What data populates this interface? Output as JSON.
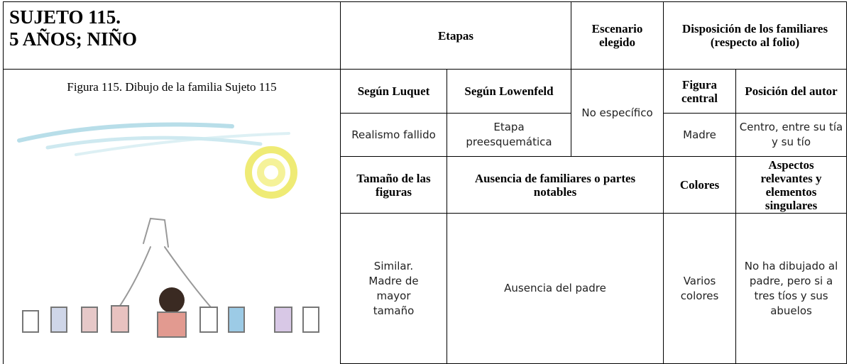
{
  "header": {
    "subject": "SUJETO 115.",
    "age": "5 AÑOS; NIÑO"
  },
  "figure": {
    "caption": "Figura 115. Dibujo de la familia Sujeto 115"
  },
  "table": {
    "etapas_header": "Etapas",
    "escenario_header": "Escenario elegido",
    "disposicion_header": "Disposición de los familiares",
    "disposicion_note": "(respecto al folio)",
    "luquet_header": "Según Luquet",
    "lowenfeld_header": "Según Lowenfeld",
    "escenario": "No específico",
    "figura_central_header": "Figura central",
    "posicion_header": "Posición del autor",
    "luquet": "Realismo fallido",
    "lowenfeld": "Etapa preesquemática",
    "figura_central": "Madre",
    "posicion": "Centro, entre su tía y su tío",
    "tamano_header": "Tamaño de las figuras",
    "ausencia_header": "Ausencia de familiares o partes notables",
    "colores_header": "Colores",
    "aspectos_header": "Aspectos relevantes y elementos singulares",
    "tamano": "Similar. Madre de mayor tamaño",
    "ausencia": "Ausencia del padre",
    "colores": "Varios colores",
    "aspectos": "No ha dibujado al padre, pero si a tres tíos y sus abuelos"
  }
}
